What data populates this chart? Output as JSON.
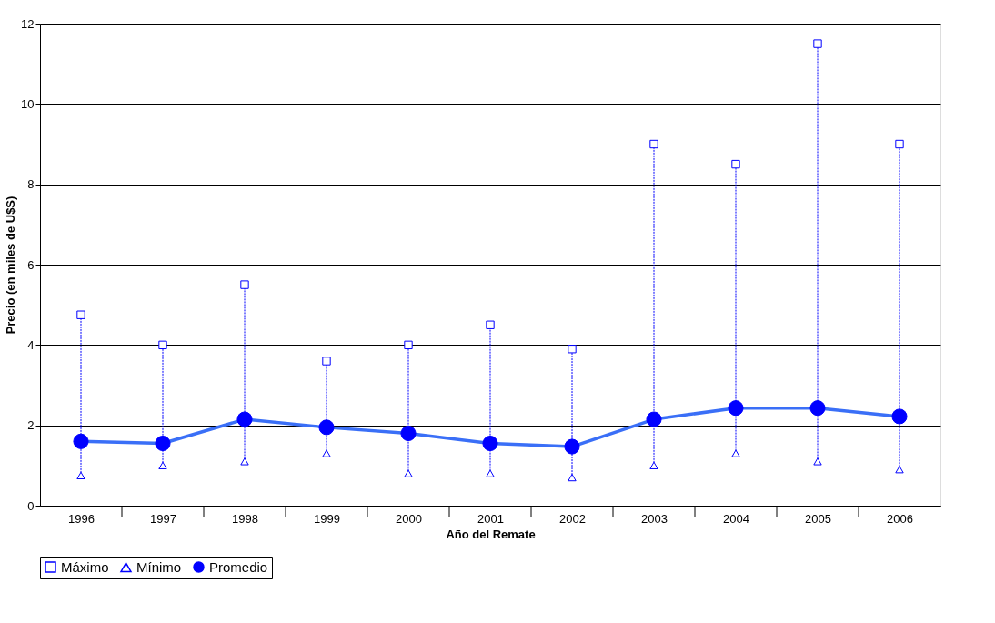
{
  "chart_data": {
    "type": "line",
    "xlabel": "Año del Remate",
    "ylabel": "Precio (en miles de U$S)",
    "categories": [
      "1996",
      "1997",
      "1998",
      "1999",
      "2000",
      "2001",
      "2002",
      "2003",
      "2004",
      "2005",
      "2006"
    ],
    "series": [
      {
        "name": "Máximo",
        "type": "scatter",
        "marker": "square",
        "color": "#0000ff",
        "values": [
          4.75,
          4.0,
          5.5,
          3.6,
          4.0,
          4.5,
          3.9,
          9.0,
          8.5,
          11.5,
          9.0
        ]
      },
      {
        "name": "Mínimo",
        "type": "scatter",
        "marker": "triangle",
        "color": "#0000ff",
        "values": [
          0.75,
          1.0,
          1.1,
          1.3,
          0.8,
          0.8,
          0.7,
          1.0,
          1.3,
          1.1,
          0.9
        ]
      },
      {
        "name": "Promedio",
        "marker": "circle",
        "color": "#0000ff",
        "values": [
          1.6,
          1.55,
          2.15,
          1.95,
          1.8,
          1.55,
          1.47,
          2.15,
          2.43,
          2.43,
          2.22
        ]
      }
    ],
    "ylim": [
      0,
      12
    ],
    "yticks": [
      0,
      2,
      4,
      6,
      8,
      10,
      12
    ],
    "grid": "y",
    "legend": "bottom"
  }
}
